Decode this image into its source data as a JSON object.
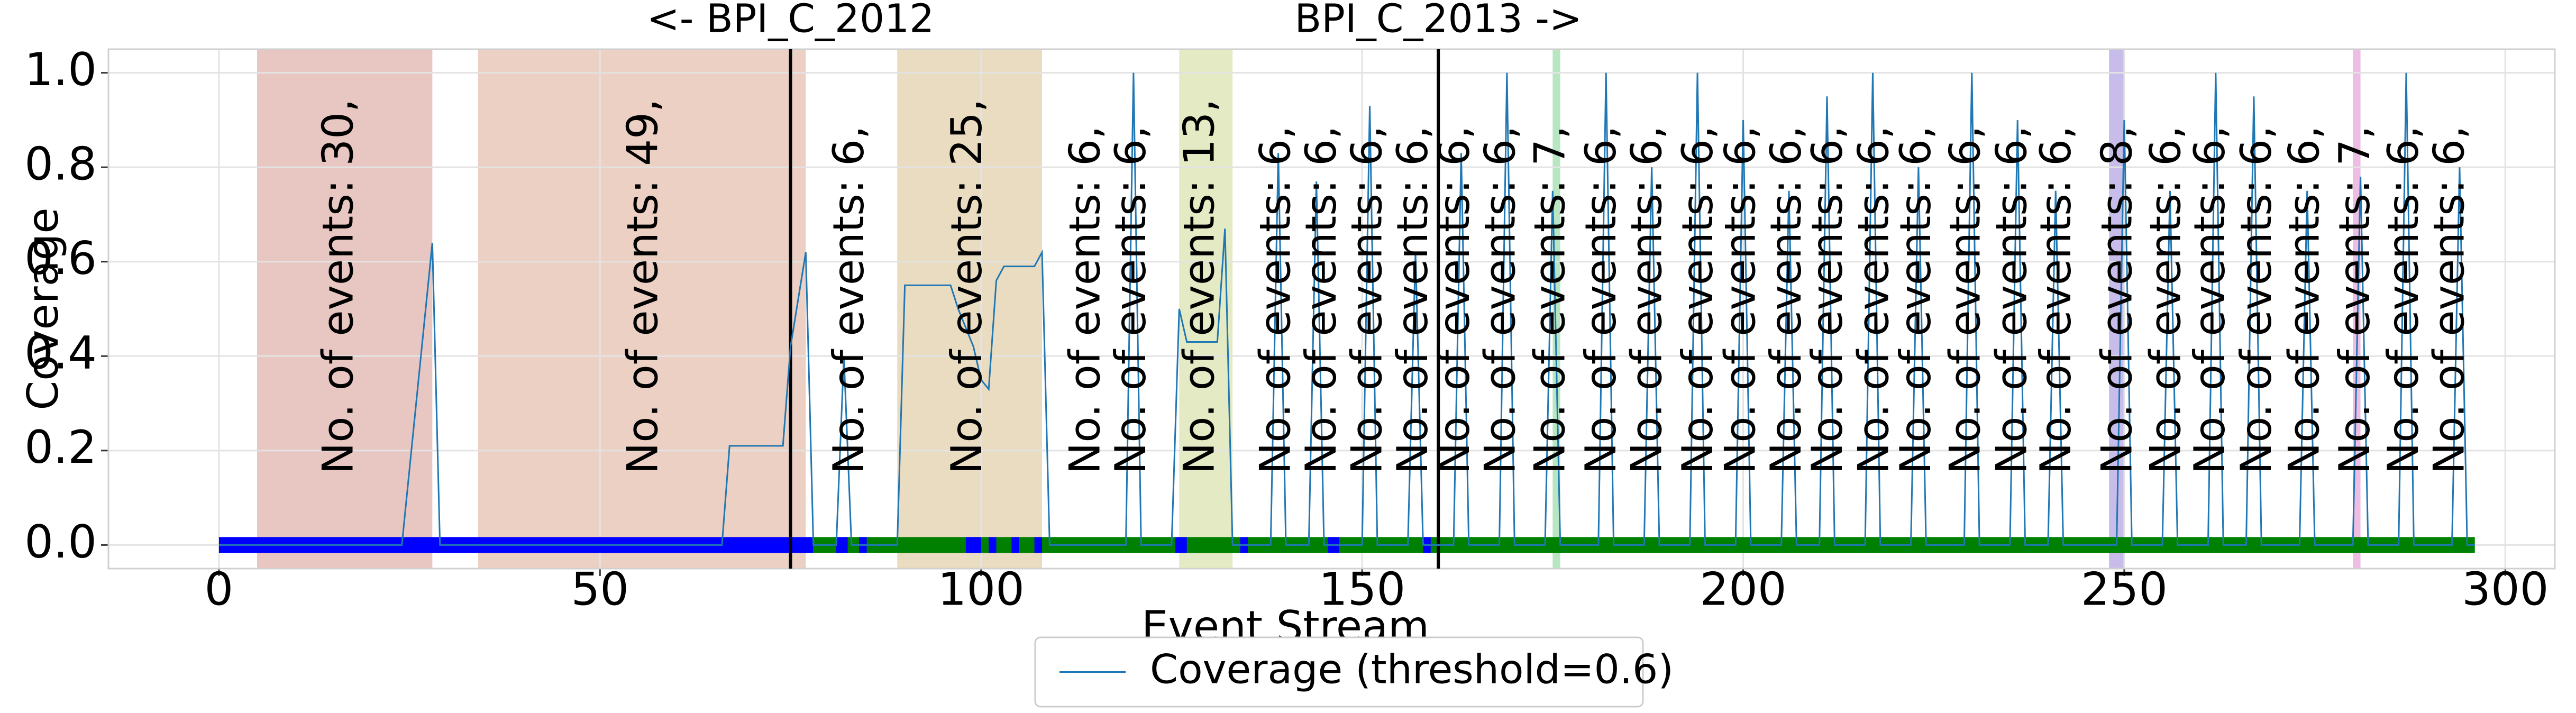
{
  "chart_data": {
    "type": "line",
    "xlabel": "Event Stream",
    "ylabel": "Coverage",
    "xlim": [
      -14.5,
      306.5
    ],
    "ylim": [
      -0.05,
      1.05
    ],
    "xticks": [
      0,
      50,
      100,
      150,
      200,
      250,
      300
    ],
    "yticks": [
      {
        "value": 0,
        "label": "0.0"
      },
      0.2,
      0.4,
      0.6,
      0.8,
      {
        "value": 1,
        "label": "1.0"
      }
    ],
    "grid": true,
    "legend": "lower center outside",
    "x": [
      0,
      24,
      28,
      29,
      66,
      67,
      74,
      75,
      77,
      78,
      81,
      82,
      83,
      89,
      90,
      96,
      97,
      99,
      100,
      101,
      102,
      103,
      107,
      108,
      109,
      119,
      120,
      121,
      125,
      126,
      127,
      131,
      132,
      133,
      138,
      139,
      140,
      143,
      144,
      145,
      150,
      151,
      152,
      156,
      157,
      158,
      162,
      163,
      164,
      168,
      169,
      170,
      174,
      175,
      176,
      181,
      182,
      183,
      187,
      188,
      189,
      193,
      194,
      195,
      199,
      200,
      201,
      205,
      206,
      207,
      210,
      211,
      212,
      216,
      217,
      218,
      222,
      223,
      224,
      229,
      230,
      231,
      235,
      236,
      237,
      240,
      241,
      242,
      249,
      250,
      251,
      255,
      256,
      257,
      261,
      262,
      263,
      266,
      267,
      268,
      273,
      274,
      275,
      280,
      281,
      282,
      286,
      287,
      288,
      293,
      294,
      295,
      296
    ],
    "series": [
      {
        "name": "Coverage (threshold=0.6)",
        "color": "#1f77b4",
        "values": [
          0,
          0,
          0.64,
          0,
          0,
          0.21,
          0.21,
          0.42,
          0.62,
          0,
          0,
          0.4,
          0,
          0,
          0.55,
          0.55,
          0.5,
          0.42,
          0.35,
          0.33,
          0.56,
          0.59,
          0.59,
          0.62,
          0,
          0,
          1.0,
          0,
          0,
          0.5,
          0.43,
          0.43,
          0.67,
          0,
          0,
          0.83,
          0,
          0,
          0.77,
          0,
          0,
          0.93,
          0,
          0,
          0.62,
          0,
          0,
          0.83,
          0,
          0,
          1.0,
          0,
          0,
          0.75,
          0,
          0,
          1.0,
          0,
          0,
          0.8,
          0,
          0,
          1.0,
          0,
          0,
          0.9,
          0,
          0,
          0.75,
          0,
          0,
          0.95,
          0,
          0,
          1.0,
          0,
          0,
          0.8,
          0,
          0,
          1.0,
          0,
          0,
          0.9,
          0,
          0,
          0.75,
          0,
          0,
          0.9,
          0,
          0,
          0.75,
          0,
          0,
          1.0,
          0,
          0,
          0.95,
          0,
          0,
          0.75,
          0,
          0,
          0.78,
          0,
          0,
          1.0,
          0,
          0,
          0.8,
          0,
          0
        ]
      }
    ],
    "regions": [
      {
        "start": 5,
        "end": 28,
        "color": "#e8c6c2"
      },
      {
        "start": 34,
        "end": 77,
        "color": "#ebd0c3"
      },
      {
        "start": 89,
        "end": 108,
        "color": "#eadcc0"
      },
      {
        "start": 126,
        "end": 133,
        "color": "#e4eac3"
      },
      {
        "start": 175,
        "end": 176,
        "color": "#b9e6c2"
      },
      {
        "start": 248,
        "end": 250,
        "color": "#c8bdea"
      },
      {
        "start": 280,
        "end": 281,
        "color": "#eebde3"
      }
    ],
    "stream_segments": [
      {
        "start": 0,
        "end": 78,
        "color": "#0000ff"
      },
      {
        "start": 78,
        "end": 296,
        "color": "#008000"
      },
      {
        "start": 81,
        "end": 82.5,
        "color": "#0000ff"
      },
      {
        "start": 84,
        "end": 85,
        "color": "#0000ff"
      },
      {
        "start": 98,
        "end": 100,
        "color": "#0000ff"
      },
      {
        "start": 101,
        "end": 102,
        "color": "#0000ff"
      },
      {
        "start": 104,
        "end": 105,
        "color": "#0000ff"
      },
      {
        "start": 107,
        "end": 108,
        "color": "#0000ff"
      },
      {
        "start": 125.5,
        "end": 127,
        "color": "#0000ff"
      },
      {
        "start": 134,
        "end": 135,
        "color": "#0000ff"
      },
      {
        "start": 145.5,
        "end": 147,
        "color": "#0000ff"
      },
      {
        "start": 158,
        "end": 159,
        "color": "#0000ff"
      }
    ],
    "vlines": [
      {
        "x": 75,
        "label": "<- BPI_C_2012"
      },
      {
        "x": 160,
        "label": "BPI_C_2013 ->"
      }
    ],
    "annotations": [
      {
        "x": 16,
        "text": "No. of events: 30,"
      },
      {
        "x": 56,
        "text": "No. of events: 49,"
      },
      {
        "x": 83,
        "text": "No. of events: 6,"
      },
      {
        "x": 98.5,
        "text": "No. of events: 25,"
      },
      {
        "x": 114,
        "text": "No. of events: 6,"
      },
      {
        "x": 120,
        "text": "No. of events: 6,"
      },
      {
        "x": 129,
        "text": "No. of events: 13,"
      },
      {
        "x": 139,
        "text": "No. of events: 6,"
      },
      {
        "x": 145,
        "text": "No. of events: 6,"
      },
      {
        "x": 151,
        "text": "No. of events: 6,"
      },
      {
        "x": 157,
        "text": "No. of events: 6,"
      },
      {
        "x": 162.5,
        "text": "No. of events: 6,"
      },
      {
        "x": 168.5,
        "text": "No. of events: 6,"
      },
      {
        "x": 175,
        "text": "No. of events: 7,"
      },
      {
        "x": 181.7,
        "text": "No. of events: 6,"
      },
      {
        "x": 187.7,
        "text": "No. of events: 6,"
      },
      {
        "x": 194.4,
        "text": "No. of events: 6,"
      },
      {
        "x": 200,
        "text": "No. of events: 6,"
      },
      {
        "x": 206,
        "text": "No. of events: 6,"
      },
      {
        "x": 211.4,
        "text": "No. of events: 6,"
      },
      {
        "x": 217.5,
        "text": "No. of events: 6,"
      },
      {
        "x": 223,
        "text": "No. of events: 6,"
      },
      {
        "x": 229.5,
        "text": "No. of events: 6,"
      },
      {
        "x": 235.6,
        "text": "No. of events: 6,"
      },
      {
        "x": 241.4,
        "text": "No. of events: 6,"
      },
      {
        "x": 249.4,
        "text": "No. of events: 8,"
      },
      {
        "x": 255.8,
        "text": "No. of events: 6,"
      },
      {
        "x": 261.6,
        "text": "No. of events: 6,"
      },
      {
        "x": 267.7,
        "text": "No. of events: 6,"
      },
      {
        "x": 274,
        "text": "No. of events: 6,"
      },
      {
        "x": 280.6,
        "text": "No. of events: 7,"
      },
      {
        "x": 287,
        "text": "No. of events: 6,"
      },
      {
        "x": 293,
        "text": "No. of events: 6,"
      }
    ]
  }
}
